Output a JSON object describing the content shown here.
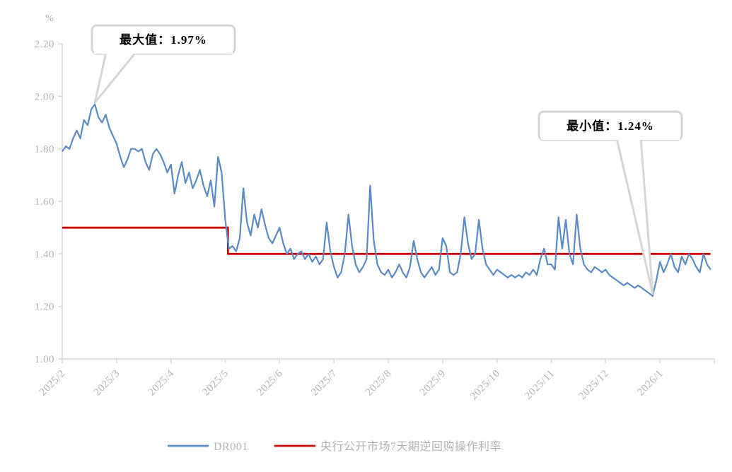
{
  "styles": {
    "background": "#FFFFFF",
    "axis_line_color": "#D9D9D9",
    "axis_text_color": "#B3B3B3",
    "annotation_text_color": "#000000",
    "callout_border_color": "#D6D6D6",
    "callout_fill": "#FFFFFF"
  },
  "chart_data": {
    "type": "line",
    "unit": "%",
    "grid": false,
    "legend_position": "bottom",
    "categories": [
      "2025/2",
      "2025/3",
      "2025/4",
      "2025/5",
      "2025/6",
      "2025/7",
      "2025/8",
      "2025/9",
      "2025/10",
      "2025/11",
      "2025/12",
      "2026/1"
    ],
    "x_months_span": 12,
    "ylim": [
      1.0,
      2.2
    ],
    "y_ticks": [
      1.0,
      1.2,
      1.4,
      1.6,
      1.8,
      2.0,
      2.2
    ],
    "y_tick_labels": [
      "1.00",
      "1.20",
      "1.40",
      "1.60",
      "1.80",
      "2.00",
      "2.20"
    ],
    "series": [
      {
        "name": "DR001",
        "type": "line",
        "color": "#5B8AC6",
        "points_per_month": 15,
        "values": [
          1.79,
          1.81,
          1.8,
          1.84,
          1.87,
          1.84,
          1.91,
          1.89,
          1.95,
          1.97,
          1.92,
          1.9,
          1.93,
          1.88,
          1.85,
          1.82,
          1.77,
          1.73,
          1.76,
          1.8,
          1.8,
          1.79,
          1.8,
          1.75,
          1.72,
          1.78,
          1.8,
          1.78,
          1.75,
          1.71,
          1.74,
          1.63,
          1.7,
          1.75,
          1.67,
          1.71,
          1.65,
          1.68,
          1.72,
          1.66,
          1.62,
          1.68,
          1.58,
          1.77,
          1.71,
          1.53,
          1.42,
          1.43,
          1.41,
          1.46,
          1.65,
          1.52,
          1.47,
          1.55,
          1.5,
          1.57,
          1.51,
          1.46,
          1.44,
          1.47,
          1.5,
          1.44,
          1.4,
          1.42,
          1.38,
          1.4,
          1.41,
          1.38,
          1.4,
          1.37,
          1.39,
          1.36,
          1.38,
          1.52,
          1.41,
          1.35,
          1.31,
          1.33,
          1.4,
          1.55,
          1.43,
          1.36,
          1.33,
          1.35,
          1.38,
          1.66,
          1.45,
          1.36,
          1.33,
          1.32,
          1.34,
          1.31,
          1.33,
          1.36,
          1.33,
          1.31,
          1.35,
          1.45,
          1.38,
          1.33,
          1.31,
          1.33,
          1.35,
          1.32,
          1.34,
          1.46,
          1.43,
          1.33,
          1.32,
          1.33,
          1.4,
          1.54,
          1.44,
          1.38,
          1.4,
          1.53,
          1.42,
          1.36,
          1.34,
          1.32,
          1.34,
          1.33,
          1.32,
          1.31,
          1.32,
          1.31,
          1.32,
          1.31,
          1.33,
          1.32,
          1.34,
          1.32,
          1.38,
          1.42,
          1.36,
          1.36,
          1.34,
          1.54,
          1.42,
          1.53,
          1.4,
          1.36,
          1.55,
          1.42,
          1.36,
          1.34,
          1.33,
          1.35,
          1.34,
          1.33,
          1.34,
          1.32,
          1.31,
          1.3,
          1.29,
          1.28,
          1.29,
          1.28,
          1.27,
          1.28,
          1.27,
          1.26,
          1.25,
          1.24,
          1.3,
          1.37,
          1.33,
          1.36,
          1.4,
          1.35,
          1.33,
          1.39,
          1.36,
          1.4,
          1.38,
          1.35,
          1.33,
          1.4,
          1.36,
          1.34
        ]
      },
      {
        "name": "央行公开市场7天期逆回购操作利率",
        "type": "step",
        "color": "#D00000",
        "x": [
          0,
          3.05,
          3.05,
          11.93
        ],
        "values": [
          1.5,
          1.5,
          1.4,
          1.4
        ]
      }
    ],
    "annotations": [
      {
        "id": "max",
        "label": "最大值：1.97%",
        "value": 1.97
      },
      {
        "id": "min",
        "label": "最小值：1.24%",
        "value": 1.24
      }
    ]
  }
}
